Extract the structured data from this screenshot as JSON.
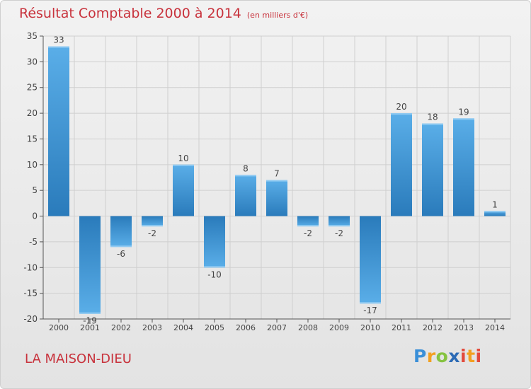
{
  "header": {
    "title": "Résultat Comptable 2000 à 2014",
    "unit": "(en milliers d'€)"
  },
  "footer": {
    "town": "LA MAISON-DIEU",
    "logo": [
      "P",
      "r",
      "o",
      "x",
      "i",
      "t",
      "i"
    ]
  },
  "chart_data": {
    "type": "bar",
    "title": "Résultat Comptable 2000 à 2014",
    "subtitle": "(en milliers d'€)",
    "categories": [
      "2000",
      "2001",
      "2002",
      "2003",
      "2004",
      "2005",
      "2006",
      "2007",
      "2008",
      "2009",
      "2010",
      "2011",
      "2012",
      "2013",
      "2014"
    ],
    "values": [
      33,
      -19,
      -6,
      -2,
      10,
      -10,
      8,
      7,
      -2,
      -2,
      -17,
      20,
      18,
      19,
      1
    ],
    "ylim": [
      -20,
      35
    ],
    "yticks": [
      35,
      30,
      25,
      20,
      15,
      10,
      5,
      0,
      -5,
      -10,
      -15,
      -20
    ],
    "grid": true,
    "bar_color_light": "#5aaee8",
    "bar_color_dark": "#2a7bbb",
    "grid_color": "#cfcfcf"
  }
}
